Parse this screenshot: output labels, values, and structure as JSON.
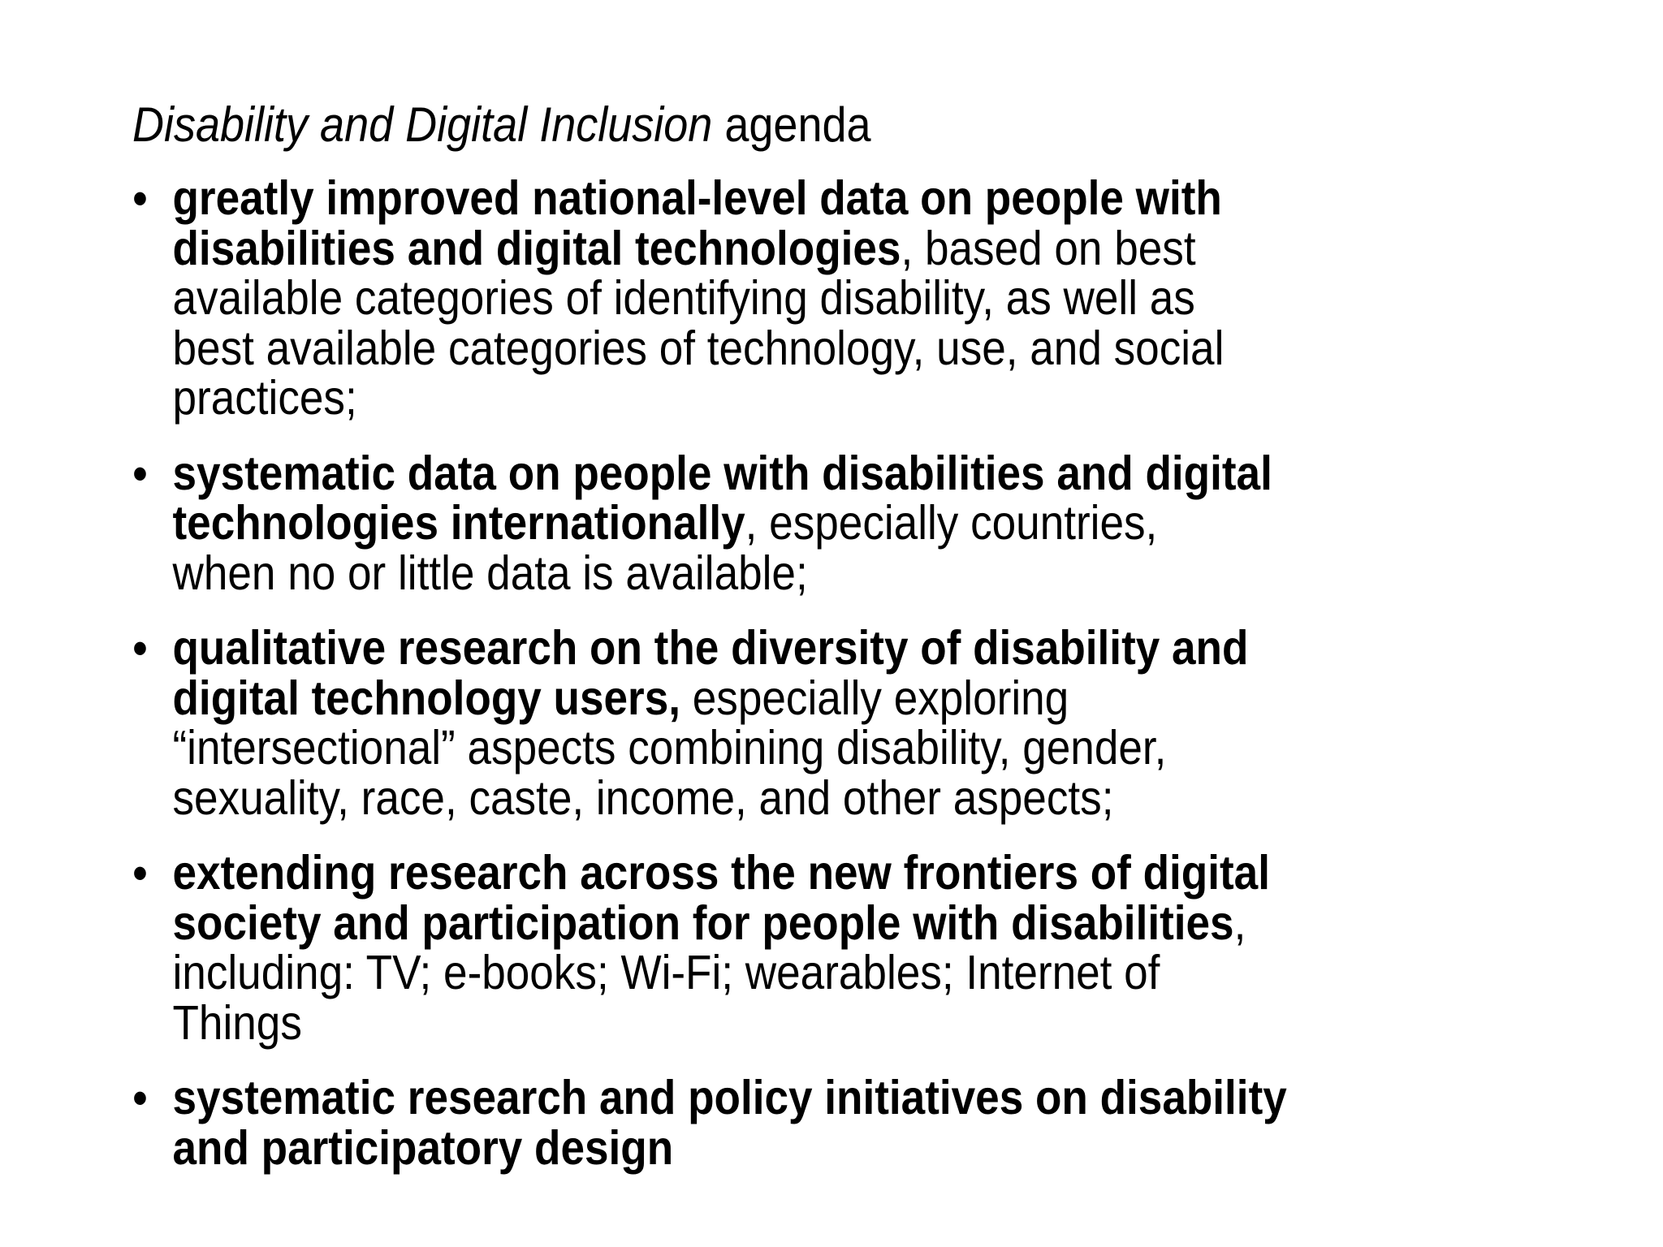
{
  "title": {
    "italic": "Disability and Digital Inclusion",
    "rest": " agenda"
  },
  "bullet_glyph": "•",
  "bullets": [
    {
      "lines": [
        [
          {
            "t": "greatly improved national-level data on people with",
            "b": true
          }
        ],
        [
          {
            "t": "disabilities and digital technologies",
            "b": true
          },
          {
            "t": ", based on best",
            "b": false
          }
        ],
        [
          {
            "t": "available categories of identifying disability, as well as",
            "b": false
          }
        ],
        [
          {
            "t": "best available categories of technology, use, and social",
            "b": false
          }
        ],
        [
          {
            "t": "practices;",
            "b": false
          }
        ]
      ]
    },
    {
      "lines": [
        [
          {
            "t": "systematic data on people with disabilities and digital",
            "b": true
          }
        ],
        [
          {
            "t": "technologies internationally",
            "b": true
          },
          {
            "t": ", especially countries,",
            "b": false
          }
        ],
        [
          {
            "t": "when no or little data is available;",
            "b": false
          }
        ]
      ]
    },
    {
      "lines": [
        [
          {
            "t": "qualitative research on the diversity of disability and",
            "b": true
          }
        ],
        [
          {
            "t": "digital technology users,",
            "b": true
          },
          {
            "t": " especially exploring",
            "b": false
          }
        ],
        [
          {
            "t": "“intersectional” aspects combining disability, gender,",
            "b": false
          }
        ],
        [
          {
            "t": "sexuality, race, caste, income, and other aspects;",
            "b": false
          }
        ]
      ]
    },
    {
      "lines": [
        [
          {
            "t": "extending research across the new frontiers of digital",
            "b": true
          }
        ],
        [
          {
            "t": "society and participation for people with disabilities",
            "b": true
          },
          {
            "t": ",",
            "b": false
          }
        ],
        [
          {
            "t": "including: TV; e-books; Wi-Fi; wearables; Internet of",
            "b": false
          }
        ],
        [
          {
            "t": "Things",
            "b": false
          }
        ]
      ]
    },
    {
      "lines": [
        [
          {
            "t": "systematic research and policy initiatives on disability",
            "b": true
          }
        ],
        [
          {
            "t": "and participatory design",
            "b": true
          }
        ]
      ]
    }
  ]
}
